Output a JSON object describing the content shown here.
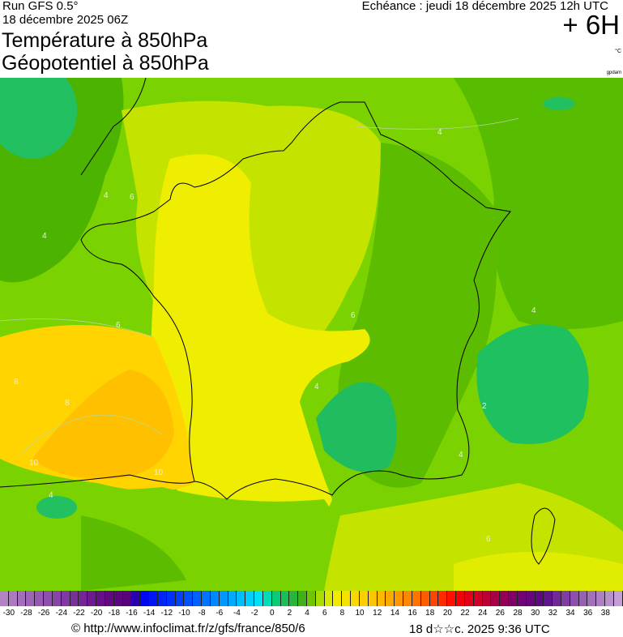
{
  "header": {
    "run": "Run GFS 0.5°",
    "run_date": "18 décembre 2025 06Z",
    "title_line1": "Température à 850hPa",
    "title_line2": "Géopotentiel à 850hPa",
    "echeance": "Echéance : jeudi 18 décembre 2025 12h UTC",
    "lead_time": "+ 6H",
    "unit_temperature": "°C",
    "unit_geopotential": "gpdam"
  },
  "map": {
    "contour_labels": [
      "4",
      "6",
      "4",
      "4",
      "6",
      "8",
      "10",
      "10",
      "4",
      "6",
      "4",
      "2",
      "4",
      "6",
      "8",
      "4"
    ]
  },
  "colorbar": {
    "range": [
      -31,
      40
    ],
    "step": 1,
    "stops": [
      {
        "v": -31,
        "c": "#b888c8"
      },
      {
        "v": -25,
        "c": "#8a4aac"
      },
      {
        "v": -19,
        "c": "#640a88"
      },
      {
        "v": -16,
        "c": "#560078"
      },
      {
        "v": -15,
        "c": "#0000f0"
      },
      {
        "v": -9,
        "c": "#0058ff"
      },
      {
        "v": -2,
        "c": "#00d8ff"
      },
      {
        "v": -1,
        "c": "#00e8f0"
      },
      {
        "v": 0,
        "c": "#00d080"
      },
      {
        "v": 3,
        "c": "#30b030"
      },
      {
        "v": 4,
        "c": "#50b000"
      },
      {
        "v": 5,
        "c": "#90d800"
      },
      {
        "v": 7,
        "c": "#f0f000"
      },
      {
        "v": 12,
        "c": "#ffc000"
      },
      {
        "v": 16,
        "c": "#ff8000"
      },
      {
        "v": 20,
        "c": "#ff2000"
      },
      {
        "v": 21,
        "c": "#ff0000"
      },
      {
        "v": 25,
        "c": "#b00040"
      },
      {
        "v": 28,
        "c": "#780070"
      },
      {
        "v": 31,
        "c": "#5a0a88"
      },
      {
        "v": 34,
        "c": "#8848a8"
      },
      {
        "v": 40,
        "c": "#c8a8d8"
      }
    ],
    "tick_labels": [
      "-30",
      "-28",
      "-26",
      "-24",
      "-22",
      "-20",
      "-18",
      "-16",
      "-14",
      "-12",
      "-10",
      "-8",
      "-6",
      "-4",
      "-2",
      "0",
      "2",
      "4",
      "6",
      "8",
      "10",
      "12",
      "14",
      "16",
      "18",
      "20",
      "22",
      "24",
      "26",
      "28",
      "30",
      "32",
      "34",
      "36",
      "38"
    ]
  },
  "footer": {
    "copyright": "© http://www.infoclimat.fr/z/gfs/france/850/6",
    "generated": "18 d☆☆c. 2025  9:36 UTC"
  }
}
